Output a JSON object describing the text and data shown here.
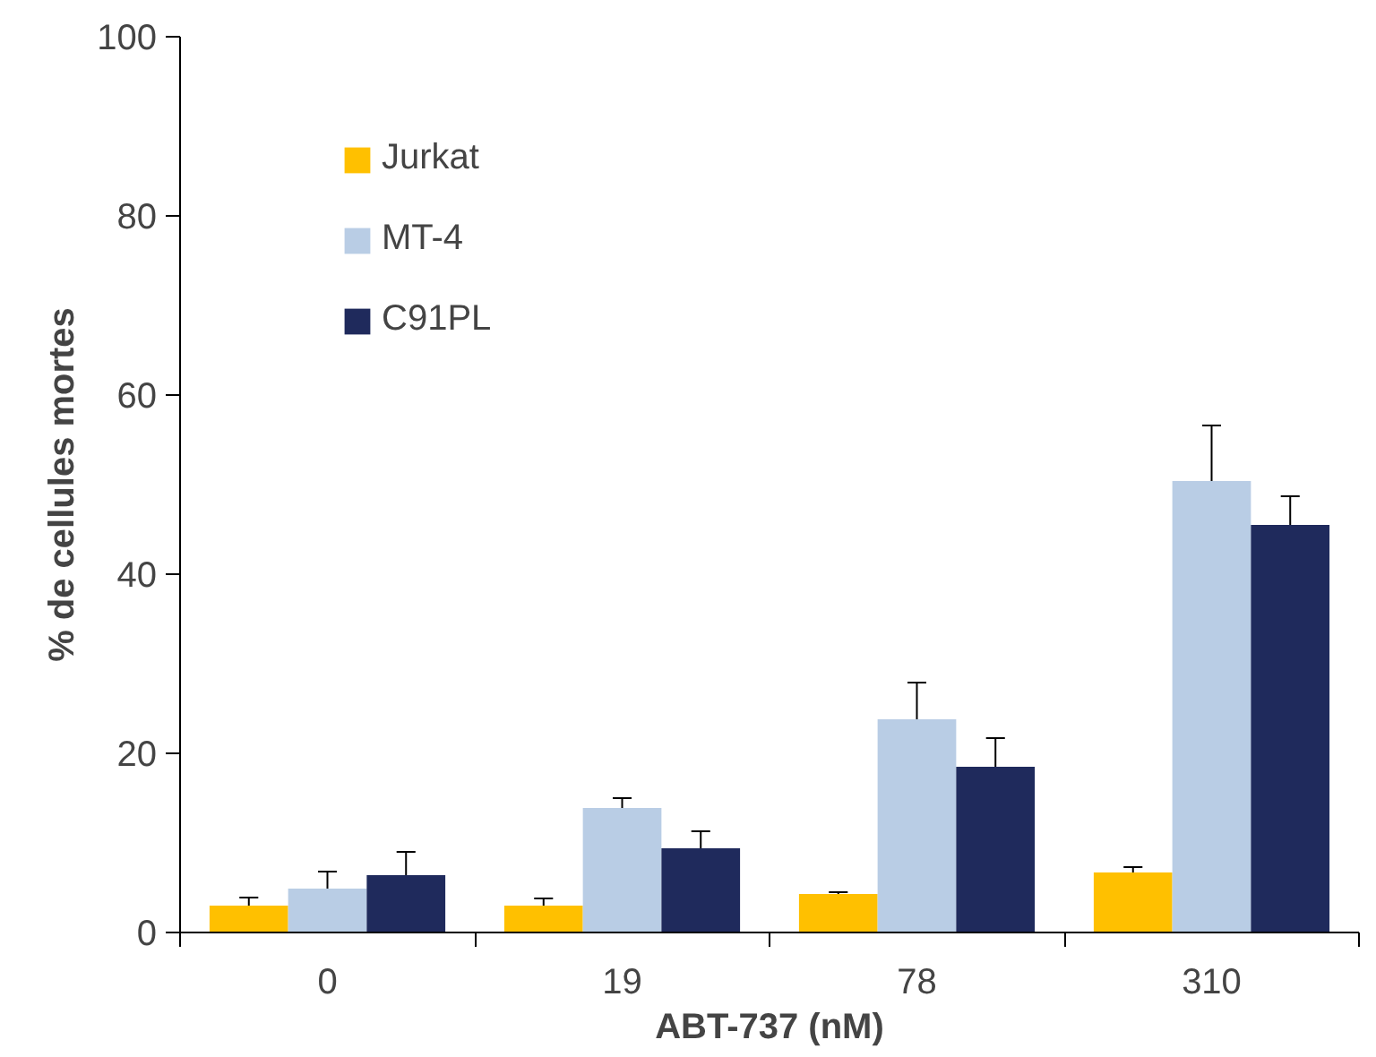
{
  "chart_data": {
    "type": "bar",
    "xlabel": "ABT-737 (nM)",
    "ylabel": "% de cellules mortes",
    "categories": [
      "0",
      "19",
      "78",
      "310"
    ],
    "series": [
      {
        "name": "Jurkat",
        "color": "#ffc000",
        "values": [
          3.0,
          3.0,
          4.3,
          6.7
        ],
        "errors": [
          [
            3.0,
            3.9
          ],
          [
            3.0,
            3.8
          ],
          [
            4.3,
            4.5
          ],
          [
            6.7,
            7.3
          ]
        ]
      },
      {
        "name": "MT-4",
        "color": "#b9cde5",
        "values": [
          4.9,
          13.9,
          23.8,
          50.4
        ],
        "errors": [
          [
            4.9,
            6.8
          ],
          [
            13.9,
            15.0
          ],
          [
            23.8,
            27.9
          ],
          [
            50.4,
            56.6
          ]
        ]
      },
      {
        "name": "C91PL",
        "color": "#1f2a5c",
        "values": [
          6.4,
          9.4,
          18.5,
          45.5
        ],
        "errors": [
          [
            6.4,
            9.0
          ],
          [
            9.4,
            11.3
          ],
          [
            18.5,
            21.7
          ],
          [
            45.5,
            48.7
          ]
        ]
      }
    ],
    "ylim": [
      0,
      100
    ],
    "yticks": [
      0,
      20,
      40,
      60,
      80,
      100
    ],
    "grid": false,
    "legend": "top left"
  }
}
